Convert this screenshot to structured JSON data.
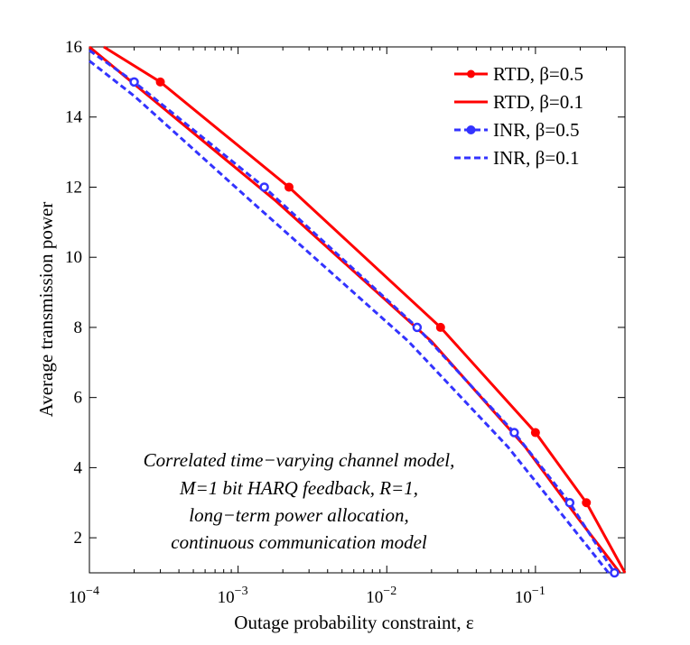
{
  "chart_data": {
    "type": "line",
    "xscale": "log",
    "xlim": [
      0.0001,
      0.4
    ],
    "ylim": [
      1,
      16
    ],
    "xlabel": "Outage probability constraint, ε",
    "ylabel": "Average transmission power",
    "x_ticks": [
      {
        "value": 0.0001,
        "base": "10",
        "exp": "−4"
      },
      {
        "value": 0.001,
        "base": "10",
        "exp": "−3"
      },
      {
        "value": 0.01,
        "base": "10",
        "exp": "−2"
      },
      {
        "value": 0.1,
        "base": "10",
        "exp": "−1"
      }
    ],
    "y_ticks": [
      2,
      4,
      6,
      8,
      10,
      12,
      14,
      16
    ],
    "grid": false,
    "legend_position": "top-right",
    "annotation": [
      "Correlated time−varying channel model,",
      "M=1 bit HARQ feedback, R=1,",
      "long−term power allocation,",
      "continuous communication model"
    ],
    "series": [
      {
        "name": "RTD, β=0.5",
        "color": "#ff0000",
        "dash": "solid",
        "marker": "filled-dot",
        "points": [
          [
            0.000125,
            16
          ],
          [
            0.0003,
            15
          ],
          [
            0.0022,
            12
          ],
          [
            0.023,
            8
          ],
          [
            0.1,
            5
          ],
          [
            0.22,
            3
          ],
          [
            0.4,
            1
          ]
        ],
        "markers": [
          [
            0.0003,
            15
          ],
          [
            0.0022,
            12
          ],
          [
            0.023,
            8
          ],
          [
            0.1,
            5
          ],
          [
            0.22,
            3
          ]
        ]
      },
      {
        "name": "RTD, β=0.1",
        "color": "#ff0000",
        "dash": "solid",
        "marker": "none",
        "points": [
          [
            0.0001,
            16
          ],
          [
            0.00025,
            14.6
          ],
          [
            0.0018,
            11.6
          ],
          [
            0.02,
            7.6
          ],
          [
            0.085,
            4.6
          ],
          [
            0.19,
            2.6
          ],
          [
            0.37,
            1
          ]
        ],
        "markers": []
      },
      {
        "name": "INR, β=0.5",
        "color": "#3333ff",
        "dash": "dashed",
        "marker": "open-circle",
        "points": [
          [
            0.0001,
            15.9
          ],
          [
            0.0002,
            15
          ],
          [
            0.0015,
            12
          ],
          [
            0.016,
            8
          ],
          [
            0.072,
            5
          ],
          [
            0.17,
            3
          ],
          [
            0.34,
            1
          ]
        ],
        "markers": [
          [
            0.0002,
            15
          ],
          [
            0.0015,
            12
          ],
          [
            0.016,
            8
          ],
          [
            0.072,
            5
          ],
          [
            0.17,
            3
          ],
          [
            0.34,
            1
          ]
        ]
      },
      {
        "name": "INR, β=0.1",
        "color": "#3333ff",
        "dash": "dashed",
        "marker": "none",
        "points": [
          [
            0.0001,
            15.6
          ],
          [
            0.0002,
            14.6
          ],
          [
            0.0013,
            11.5
          ],
          [
            0.014,
            7.6
          ],
          [
            0.065,
            4.6
          ],
          [
            0.155,
            2.6
          ],
          [
            0.31,
            1
          ]
        ],
        "markers": []
      }
    ]
  }
}
